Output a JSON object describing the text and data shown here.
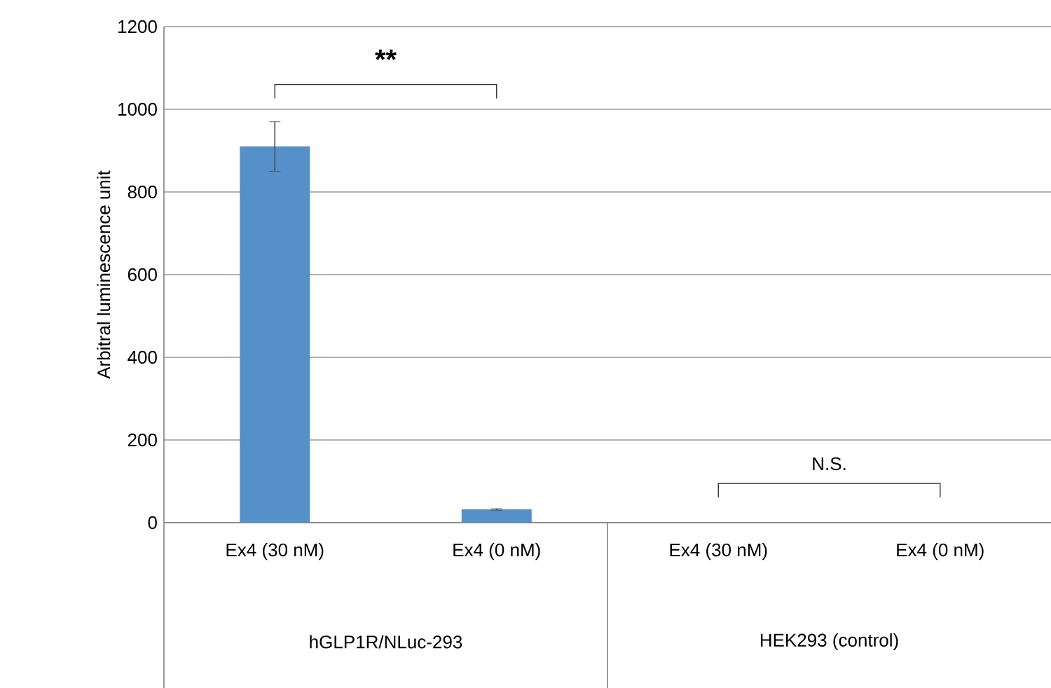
{
  "chart_data": {
    "type": "bar",
    "categories": [
      "Ex4 (30 nM)",
      "Ex4 (0 nM)",
      "Ex4 (30 nM)",
      "Ex4 (0 nM)"
    ],
    "values": [
      910,
      32,
      0,
      0
    ],
    "errors": [
      60,
      2,
      null,
      null
    ],
    "color": "#5591c8",
    "ylabel": "Arbitral luminescence unit",
    "ylim": [
      0,
      1200
    ],
    "yticks": [
      0,
      200,
      400,
      600,
      800,
      1000,
      1200
    ],
    "grid": "y",
    "annotations": [
      "**",
      "N.S.",
      "hGLP1R/NLuc-293",
      "HEK293 (control)"
    ]
  }
}
